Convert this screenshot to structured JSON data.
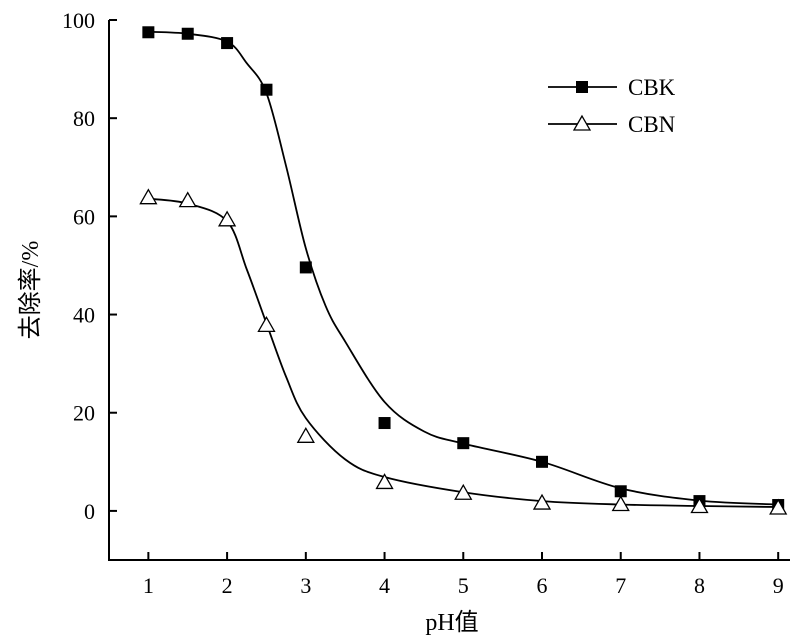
{
  "chart_data": {
    "type": "line",
    "title": "",
    "xlabel": "pH值",
    "ylabel": "去除率/%",
    "xlim": [
      0.5,
      9.15
    ],
    "ylim": [
      -10,
      100
    ],
    "xticks": [
      1,
      2,
      3,
      4,
      5,
      6,
      7,
      8,
      9
    ],
    "yticks": [
      0,
      20,
      40,
      60,
      80,
      100
    ],
    "grid": false,
    "legend_position": "top-right",
    "series": [
      {
        "name": "CBK",
        "marker": "filled-square",
        "color": "#000000",
        "x": [
          1,
          1.5,
          2,
          2.5,
          3,
          4,
          5,
          6,
          7,
          8,
          9
        ],
        "y": [
          97.5,
          97.2,
          95.3,
          85.8,
          49.6,
          17.9,
          13.8,
          10.0,
          4.0,
          2.0,
          1.2
        ],
        "fit_x": [
          1,
          1.5,
          2,
          2.25,
          2.5,
          2.75,
          3,
          3.25,
          3.5,
          4,
          4.5,
          5,
          6,
          7,
          8,
          9
        ],
        "fit_y": [
          97.6,
          97.2,
          95.6,
          91.2,
          85.1,
          70.2,
          53.5,
          41.8,
          34.5,
          22.2,
          16.2,
          13.7,
          10.0,
          4.6,
          2.1,
          1.3
        ]
      },
      {
        "name": "CBN",
        "marker": "open-triangle",
        "color": "#000000",
        "x": [
          1,
          1.5,
          2,
          2.5,
          3,
          4,
          5,
          6,
          7,
          8,
          9
        ],
        "y": [
          63.8,
          63.2,
          59.3,
          37.8,
          15.2,
          5.8,
          3.6,
          1.6,
          1.3,
          0.9,
          0.6
        ],
        "fit_x": [
          1,
          1.5,
          2,
          2.25,
          2.5,
          2.75,
          3,
          3.5,
          4,
          5,
          6,
          7,
          8,
          9
        ],
        "fit_y": [
          63.6,
          62.6,
          59.0,
          49.2,
          38.2,
          27.3,
          18.9,
          10.5,
          6.9,
          3.8,
          2.0,
          1.3,
          1.0,
          0.8
        ]
      }
    ]
  }
}
